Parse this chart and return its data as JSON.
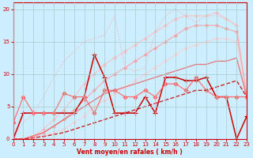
{
  "xlabel": "Vent moyen/en rafales ( km/h )",
  "xlim": [
    0,
    23
  ],
  "ylim": [
    0,
    21
  ],
  "yticks": [
    0,
    5,
    10,
    15,
    20
  ],
  "xticks": [
    0,
    1,
    2,
    3,
    4,
    5,
    6,
    7,
    8,
    9,
    10,
    11,
    12,
    13,
    14,
    15,
    16,
    17,
    18,
    19,
    20,
    21,
    22,
    23
  ],
  "bg_color": "#cceeff",
  "grid_color": "#aacccc",
  "lines": [
    {
      "x": [
        0,
        1,
        2,
        3,
        4,
        5,
        6,
        7,
        8,
        9,
        10,
        11,
        12,
        13,
        14,
        15,
        16,
        17,
        18,
        19,
        20,
        21,
        22,
        23
      ],
      "y": [
        0,
        2.5,
        4.0,
        6.5,
        9.5,
        12.0,
        13.5,
        15.0,
        15.5,
        16.0,
        19.0,
        11.0,
        10.5,
        11.0,
        16.5,
        19.0,
        20.0,
        19.0,
        18.0,
        19.0,
        19.0,
        18.5,
        17.5,
        6.5
      ],
      "color": "#ffaaaa",
      "lw": 0.9,
      "marker": null,
      "ls": ":",
      "alpha": 0.85,
      "ms": null
    },
    {
      "x": [
        0,
        1,
        2,
        3,
        4,
        5,
        6,
        7,
        8,
        9,
        10,
        11,
        12,
        13,
        14,
        15,
        16,
        17,
        18,
        19,
        20,
        21,
        22,
        23
      ],
      "y": [
        0,
        0,
        0.5,
        1.5,
        3.0,
        4.5,
        6.5,
        8.5,
        10.0,
        11.5,
        12.5,
        13.5,
        14.5,
        15.5,
        16.5,
        17.5,
        18.5,
        19.0,
        19.0,
        19.0,
        19.5,
        18.5,
        17.5,
        6.5
      ],
      "color": "#ffbbbb",
      "lw": 0.9,
      "marker": "D",
      "ms": 2.0,
      "ls": "-",
      "alpha": 0.75
    },
    {
      "x": [
        0,
        1,
        2,
        3,
        4,
        5,
        6,
        7,
        8,
        9,
        10,
        11,
        12,
        13,
        14,
        15,
        16,
        17,
        18,
        19,
        20,
        21,
        22,
        23
      ],
      "y": [
        0,
        0,
        0.3,
        1.0,
        2.0,
        3.0,
        4.5,
        6.0,
        7.5,
        9.0,
        10.0,
        11.0,
        12.0,
        13.0,
        14.0,
        15.0,
        16.0,
        17.0,
        17.5,
        17.5,
        17.5,
        17.0,
        16.5,
        6.5
      ],
      "color": "#ff9999",
      "lw": 0.9,
      "marker": "D",
      "ms": 2.0,
      "ls": "-",
      "alpha": 0.75
    },
    {
      "x": [
        0,
        1,
        2,
        3,
        4,
        5,
        6,
        7,
        8,
        9,
        10,
        11,
        12,
        13,
        14,
        15,
        16,
        17,
        18,
        19,
        20,
        21,
        22,
        23
      ],
      "y": [
        0,
        0,
        0.2,
        0.5,
        1.0,
        1.5,
        2.5,
        3.5,
        5.0,
        6.0,
        7.0,
        8.0,
        9.0,
        10.0,
        11.0,
        12.0,
        13.0,
        14.0,
        14.5,
        15.0,
        15.5,
        15.5,
        15.0,
        6.5
      ],
      "color": "#ffcccc",
      "lw": 0.9,
      "marker": "D",
      "ms": 2.0,
      "ls": "-",
      "alpha": 0.7
    },
    {
      "x": [
        0,
        1,
        2,
        3,
        4,
        5,
        6,
        7,
        8,
        9,
        10,
        11,
        12,
        13,
        14,
        15,
        16,
        17,
        18,
        19,
        20,
        21,
        22,
        23
      ],
      "y": [
        0,
        4.0,
        4.0,
        4.0,
        4.0,
        4.0,
        4.0,
        6.5,
        13.0,
        9.5,
        4.0,
        4.0,
        4.0,
        6.5,
        4.0,
        9.5,
        9.5,
        9.0,
        9.0,
        9.5,
        6.5,
        6.5,
        0.0,
        3.5
      ],
      "color": "#cc0000",
      "lw": 1.1,
      "marker": "+",
      "ms": 4.0,
      "ls": "-",
      "alpha": 1.0
    },
    {
      "x": [
        0,
        1,
        2,
        3,
        4,
        5,
        6,
        7,
        8,
        9,
        10,
        11,
        12,
        13,
        14,
        15,
        16,
        17,
        18,
        19,
        20,
        21,
        22,
        23
      ],
      "y": [
        2.5,
        6.5,
        4.0,
        4.0,
        4.0,
        7.0,
        6.5,
        6.5,
        4.0,
        7.5,
        7.5,
        6.5,
        6.5,
        7.5,
        6.5,
        8.5,
        8.5,
        7.5,
        9.5,
        7.5,
        6.5,
        6.5,
        6.5,
        6.5
      ],
      "color": "#ff6666",
      "lw": 0.9,
      "marker": "D",
      "ms": 2.5,
      "ls": "-",
      "alpha": 0.9
    },
    {
      "x": [
        0,
        1,
        2,
        3,
        4,
        5,
        6,
        7,
        8,
        9,
        10,
        11,
        12,
        13,
        14,
        15,
        16,
        17,
        18,
        19,
        20,
        21,
        22,
        23
      ],
      "y": [
        0,
        0,
        0.2,
        0.4,
        0.7,
        1.0,
        1.5,
        2.0,
        2.5,
        3.0,
        3.5,
        4.0,
        4.5,
        5.0,
        5.5,
        6.0,
        6.5,
        7.0,
        7.5,
        7.5,
        8.0,
        8.5,
        9.0,
        6.5
      ],
      "color": "#cc0000",
      "lw": 1.0,
      "marker": null,
      "ms": null,
      "ls": "--",
      "alpha": 0.85
    },
    {
      "x": [
        0,
        1,
        2,
        3,
        4,
        5,
        6,
        7,
        8,
        9,
        10,
        11,
        12,
        13,
        14,
        15,
        16,
        17,
        18,
        19,
        20,
        21,
        22,
        23
      ],
      "y": [
        0,
        0,
        0.5,
        1.0,
        2.0,
        3.0,
        4.0,
        5.0,
        6.0,
        7.0,
        7.5,
        8.0,
        8.5,
        9.0,
        9.5,
        10.0,
        10.5,
        11.0,
        11.5,
        11.5,
        12.0,
        12.0,
        12.5,
        6.5
      ],
      "color": "#ee5555",
      "lw": 0.9,
      "marker": null,
      "ms": null,
      "ls": "-",
      "alpha": 0.8
    }
  ]
}
